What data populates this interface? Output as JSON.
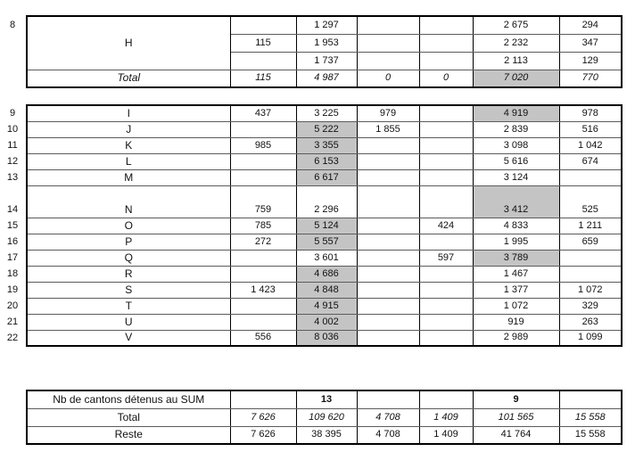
{
  "colors": {
    "highlight_gray": "#c4c4c4",
    "border": "#000000"
  },
  "table1": {
    "row_number": "8",
    "group_name": "H",
    "rows": [
      {
        "a": "",
        "b": "1 297",
        "c": "",
        "d": "",
        "e": "2 675",
        "f": "294"
      },
      {
        "a": "115",
        "b": "1 953",
        "c": "",
        "d": "",
        "e": "2 232",
        "f": "347"
      },
      {
        "a": "",
        "b": "1 737",
        "c": "",
        "d": "",
        "e": "2 113",
        "f": "129"
      }
    ],
    "total": {
      "label": "Total",
      "cells": {
        "a": "115",
        "b": "4 987",
        "c": "0",
        "d": "0",
        "e": "7 020",
        "f": "770"
      },
      "gray_cells": [
        "e"
      ]
    }
  },
  "table2": {
    "rows": [
      {
        "num": "9",
        "name": "I",
        "cells": {
          "a": "437",
          "b": "3 225",
          "c": "979",
          "d": "",
          "e": "4 919",
          "f": "978"
        },
        "gray": [
          "e"
        ],
        "tall": false
      },
      {
        "num": "10",
        "name": "J",
        "cells": {
          "a": "",
          "b": "5 222",
          "c": "1 855",
          "d": "",
          "e": "2 839",
          "f": "516"
        },
        "gray": [
          "b"
        ],
        "tall": false
      },
      {
        "num": "11",
        "name": "K",
        "cells": {
          "a": "985",
          "b": "3 355",
          "c": "",
          "d": "",
          "e": "3 098",
          "f": "1 042"
        },
        "gray": [
          "b"
        ],
        "tall": false
      },
      {
        "num": "12",
        "name": "L",
        "cells": {
          "a": "",
          "b": "6 153",
          "c": "",
          "d": "",
          "e": "5 616",
          "f": "674"
        },
        "gray": [
          "b"
        ],
        "tall": false
      },
      {
        "num": "13",
        "name": "M",
        "cells": {
          "a": "",
          "b": "6 617",
          "c": "",
          "d": "",
          "e": "3 124",
          "f": ""
        },
        "gray": [
          "b"
        ],
        "tall": false
      },
      {
        "num": "14",
        "name": "N",
        "cells": {
          "a": "759",
          "b": "2 296",
          "c": "",
          "d": "",
          "e": "3 412",
          "f": "525"
        },
        "gray": [
          "e"
        ],
        "tall": true
      },
      {
        "num": "15",
        "name": "O",
        "cells": {
          "a": "785",
          "b": "5 124",
          "c": "",
          "d": "424",
          "e": "4 833",
          "f": "1 211"
        },
        "gray": [
          "b"
        ],
        "tall": false
      },
      {
        "num": "16",
        "name": "P",
        "cells": {
          "a": "272",
          "b": "5 557",
          "c": "",
          "d": "",
          "e": "1 995",
          "f": "659"
        },
        "gray": [
          "b"
        ],
        "tall": false
      },
      {
        "num": "17",
        "name": "Q",
        "cells": {
          "a": "",
          "b": "3 601",
          "c": "",
          "d": "597",
          "e": "3 789",
          "f": ""
        },
        "gray": [
          "e"
        ],
        "tall": false
      },
      {
        "num": "18",
        "name": "R",
        "cells": {
          "a": "",
          "b": "4 686",
          "c": "",
          "d": "",
          "e": "1 467",
          "f": ""
        },
        "gray": [
          "b"
        ],
        "tall": false
      },
      {
        "num": "19",
        "name": "S",
        "cells": {
          "a": "1 423",
          "b": "4 848",
          "c": "",
          "d": "",
          "e": "1 377",
          "f": "1 072"
        },
        "gray": [
          "b"
        ],
        "tall": false
      },
      {
        "num": "20",
        "name": "T",
        "cells": {
          "a": "",
          "b": "4 915",
          "c": "",
          "d": "",
          "e": "1 072",
          "f": "329"
        },
        "gray": [
          "b"
        ],
        "tall": false
      },
      {
        "num": "21",
        "name": "U",
        "cells": {
          "a": "",
          "b": "4 002",
          "c": "",
          "d": "",
          "e": "919",
          "f": "263"
        },
        "gray": [
          "b"
        ],
        "tall": false
      },
      {
        "num": "22",
        "name": "V",
        "cells": {
          "a": "556",
          "b": "8 036",
          "c": "",
          "d": "",
          "e": "2 989",
          "f": "1 099"
        },
        "gray": [
          "b"
        ],
        "tall": false
      }
    ]
  },
  "table3": {
    "rows": [
      {
        "label": "Nb de cantons détenus au SUM",
        "cells": {
          "a": "",
          "b": "13",
          "c": "",
          "d": "",
          "e": "9",
          "f": ""
        },
        "bold": [
          "b",
          "e"
        ],
        "italic": false
      },
      {
        "label": "Total",
        "cells": {
          "a": "7 626",
          "b": "109 620",
          "c": "4 708",
          "d": "1 409",
          "e": "101 565",
          "f": "15 558"
        },
        "bold": [],
        "italic": true
      },
      {
        "label": "Reste",
        "cells": {
          "a": "7 626",
          "b": "38 395",
          "c": "4 708",
          "d": "1 409",
          "e": "41 764",
          "f": "15 558"
        },
        "bold": [],
        "italic": false
      }
    ]
  }
}
